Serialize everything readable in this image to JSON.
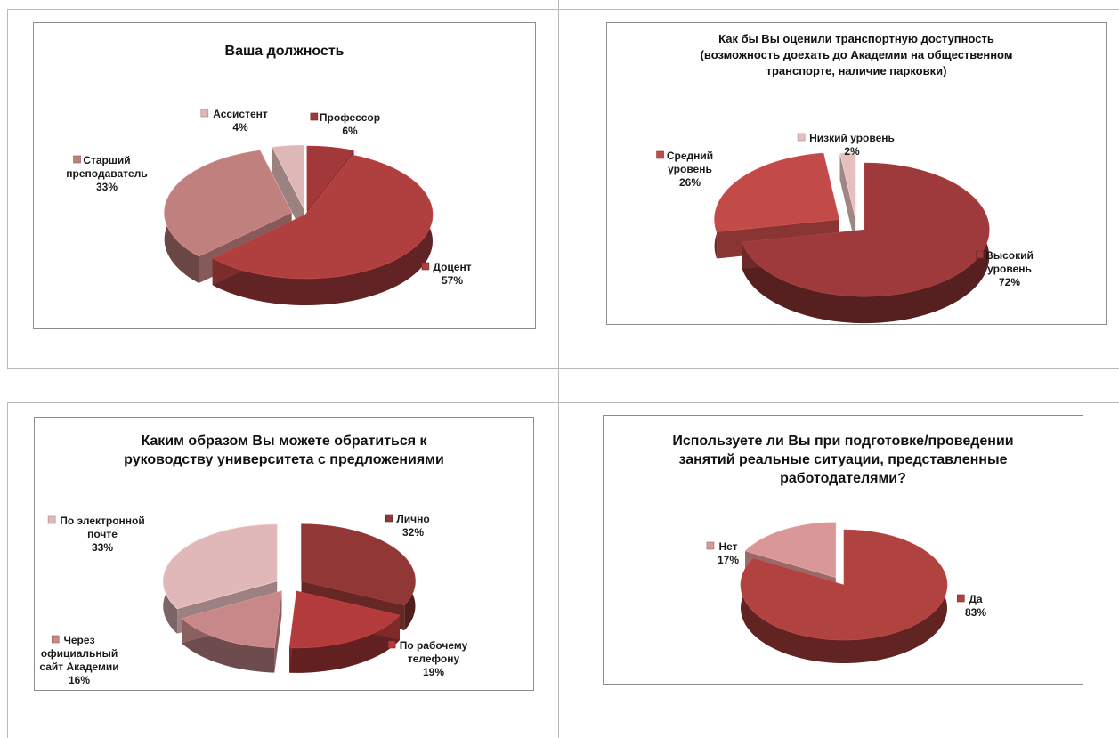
{
  "colors": {
    "professor": "#a3383a",
    "docent": "#b0403f",
    "senior": "#c0807d",
    "assistant": "#ddb8b7",
    "high": "#9e3a3b",
    "medium": "#c24b4a",
    "low": "#e6c0c0",
    "personal": "#913735",
    "phone": "#b43b3c",
    "website": "#c8888a",
    "email": "#e0b8b9",
    "yes": "#b04240",
    "no": "#da9797"
  },
  "chart_data": [
    {
      "type": "pie",
      "title": "Ваша должность",
      "slices": [
        {
          "label": "Профессор",
          "value": 6,
          "pct_label": "6%",
          "color": "#a3383a"
        },
        {
          "label": "Доцент",
          "value": 57,
          "pct_label": "57%",
          "color": "#b0403f"
        },
        {
          "label": "Старший преподаватель",
          "value": 33,
          "pct_label": "33%",
          "color": "#c0807d"
        },
        {
          "label": "Ассистент",
          "value": 4,
          "pct_label": "4%",
          "color": "#ddb8b7"
        }
      ]
    },
    {
      "type": "pie",
      "title": "Как бы Вы оценили транспортную доступность (возможность доехать до Академии на общественном транспорте, наличие парковки)",
      "slices": [
        {
          "label": "Высокий уровень",
          "value": 72,
          "pct_label": "72%",
          "color": "#9e3a3b"
        },
        {
          "label": "Средний уровень",
          "value": 26,
          "pct_label": "26%",
          "color": "#c24b4a"
        },
        {
          "label": "Низкий уровень",
          "value": 2,
          "pct_label": "2%",
          "color": "#e6c0c0"
        }
      ]
    },
    {
      "type": "pie",
      "title": "Каким образом Вы можете обратиться к руководству университета с предложениями",
      "slices": [
        {
          "label": "Лично",
          "value": 32,
          "pct_label": "32%",
          "color": "#913735"
        },
        {
          "label": "По рабочему телефону",
          "value": 19,
          "pct_label": "19%",
          "color": "#b43b3c"
        },
        {
          "label": "Через официальный сайт Академии",
          "value": 16,
          "pct_label": "16%",
          "color": "#c8888a"
        },
        {
          "label": "По электронной почте",
          "value": 33,
          "pct_label": "33%",
          "color": "#e0b8b9"
        }
      ]
    },
    {
      "type": "pie",
      "title": "Используете ли Вы при подготовке/проведении занятий реальные ситуации, представленные работодателями?",
      "slices": [
        {
          "label": "Да",
          "value": 83,
          "pct_label": "83%",
          "color": "#b04240"
        },
        {
          "label": "Нет",
          "value": 17,
          "pct_label": "17%",
          "color": "#da9797"
        }
      ]
    }
  ],
  "titles": {
    "c1": [
      "Ваша должность"
    ],
    "c2": [
      "Как бы Вы оценили транспортную доступность",
      "(возможность доехать до Академии на общественном",
      "транспорте, наличие парковки)"
    ],
    "c3": [
      "Каким образом Вы можете обратиться к",
      "руководству университета с предложениями"
    ],
    "c4": [
      "Используете ли Вы при подготовке/проведении",
      "занятий реальные ситуации, представленные",
      "работодателями?"
    ]
  },
  "labels": {
    "c1": [
      {
        "lines": [
          "Профессор",
          "6%"
        ],
        "color": "#a3383a"
      },
      {
        "lines": [
          "Доцент",
          "57%"
        ],
        "color": "#b0403f"
      },
      {
        "lines": [
          "Старший",
          "преподаватель",
          "33%"
        ],
        "color": "#c0807d"
      },
      {
        "lines": [
          "Ассистент",
          "4%"
        ],
        "color": "#ddb8b7"
      }
    ],
    "c2": [
      {
        "lines": [
          "Высокий",
          "уровень",
          "72%"
        ],
        "color": "#9e3a3b"
      },
      {
        "lines": [
          "Средний",
          "уровень",
          "26%"
        ],
        "color": "#c24b4a"
      },
      {
        "lines": [
          "Низкий уровень",
          "2%"
        ],
        "color": "#e6c0c0"
      }
    ],
    "c3": [
      {
        "lines": [
          "Лично",
          "32%"
        ],
        "color": "#913735"
      },
      {
        "lines": [
          "По рабочему",
          "телефону",
          "19%"
        ],
        "color": "#b43b3c"
      },
      {
        "lines": [
          "Через",
          "официальный",
          "сайт Академии",
          "16%"
        ],
        "color": "#c8888a"
      },
      {
        "lines": [
          "По электронной",
          "почте",
          "33%"
        ],
        "color": "#e0b8b9"
      }
    ],
    "c4": [
      {
        "lines": [
          "Да",
          "83%"
        ],
        "color": "#b04240"
      },
      {
        "lines": [
          "Нет",
          "17%"
        ],
        "color": "#da9797"
      }
    ]
  }
}
